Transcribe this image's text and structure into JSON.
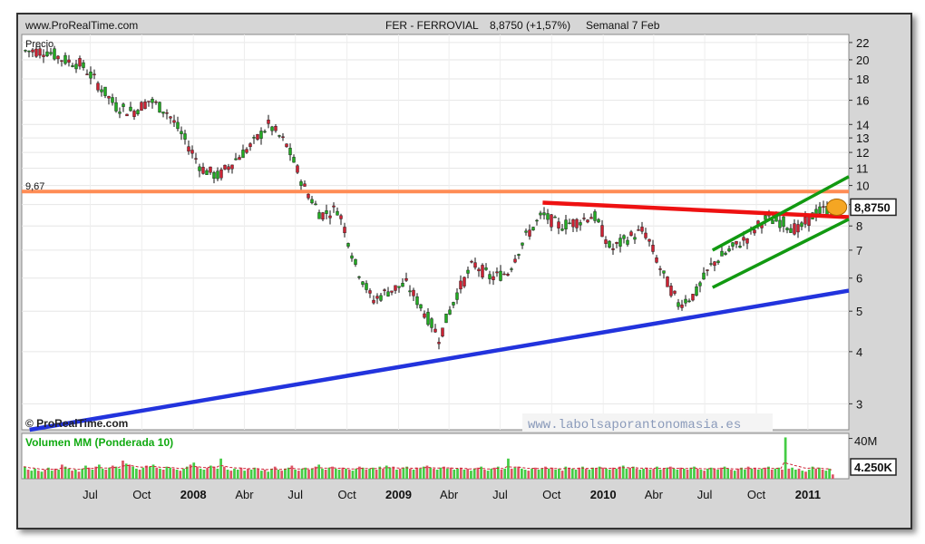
{
  "header": {
    "site": "www.ProRealTime.com",
    "instrument": "FER - FERROVIAL",
    "quote": "8,8750 (+1,57%)",
    "period": "Semanal  7 Feb"
  },
  "price_panel": {
    "label": "Precio",
    "level_label": "9,67",
    "last_price_label": "8,8750"
  },
  "volume_panel": {
    "label": "Volumen MM (Ponderada 10)",
    "axis_label": "40M",
    "last_volume_label": "4.250K"
  },
  "watermark_left": "© ProRealTime.com",
  "watermark_right": "www.labolsaporantonomasia.es",
  "colors": {
    "up": "#22aa22",
    "down": "#cc2233",
    "resistance_level": "#ff8c55",
    "support_trend": "#2233dd",
    "resistance_trend": "#ee1111",
    "channel": "#119911",
    "volume_up": "#44cc44",
    "volume_down": "#dd5566",
    "badge": "#f5a623"
  },
  "chart_data": [
    {
      "type": "line",
      "title": "FER - FERROVIAL",
      "ylabel": "Precio",
      "y_scale": "log",
      "ylim": [
        2.6,
        23
      ],
      "y_ticks": [
        3,
        4,
        5,
        6,
        7,
        8,
        9,
        10,
        11,
        12,
        13,
        14,
        16,
        18,
        20,
        22
      ],
      "x_ticks": [
        "Jul",
        "Oct",
        "2008",
        "Abr",
        "Jul",
        "Oct",
        "2009",
        "Abr",
        "Jul",
        "Oct",
        "2010",
        "Abr",
        "Jul",
        "Oct",
        "2011"
      ],
      "grid": true,
      "series": [
        {
          "name": "Precio",
          "x": [
            "2007-04",
            "2007-05",
            "2007-06",
            "2007-07",
            "2007-08",
            "2007-09",
            "2007-10",
            "2007-11",
            "2007-12",
            "2008-01",
            "2008-02",
            "2008-03",
            "2008-04",
            "2008-05",
            "2008-06",
            "2008-07",
            "2008-08",
            "2008-09",
            "2008-10",
            "2008-11",
            "2008-12",
            "2009-01",
            "2009-02",
            "2009-03",
            "2009-04",
            "2009-05",
            "2009-06",
            "2009-07",
            "2009-08",
            "2009-09",
            "2009-10",
            "2009-11",
            "2009-12",
            "2010-01",
            "2010-02",
            "2010-03",
            "2010-04",
            "2010-05",
            "2010-06",
            "2010-07",
            "2010-08",
            "2010-09",
            "2010-10",
            "2010-11",
            "2010-12",
            "2011-01",
            "2011-02"
          ],
          "values": [
            21,
            20,
            19.5,
            17.5,
            15.5,
            15,
            16,
            15,
            13,
            11,
            10.5,
            11.5,
            12.5,
            14,
            12.5,
            10,
            8.5,
            8.8,
            6.5,
            5.3,
            5.6,
            5.8,
            5,
            4.3,
            5.5,
            6.5,
            6,
            6.2,
            7.5,
            8.5,
            8,
            8.2,
            8.5,
            7,
            7.5,
            7.8,
            6.2,
            5.2,
            5.5,
            6.5,
            7,
            7.5,
            8.3,
            8.2,
            7.8,
            8.6,
            8.875
          ]
        }
      ],
      "annotations": [
        {
          "label": "9,67",
          "kind": "horizontal resistance",
          "value": 9.67
        },
        {
          "kind": "support trendline",
          "from": [
            "2007-03",
            2.6
          ],
          "to": [
            "2011-03",
            5.6
          ]
        },
        {
          "kind": "resistance trendline",
          "from": [
            "2009-09",
            9.1
          ],
          "to": [
            "2011-03",
            8.4
          ]
        },
        {
          "kind": "channel upper",
          "from": [
            "2010-07",
            7.0
          ],
          "to": [
            "2011-03",
            10.5
          ]
        },
        {
          "kind": "channel lower",
          "from": [
            "2010-07",
            5.7
          ],
          "to": [
            "2011-03",
            8.3
          ]
        },
        {
          "label": "8,8750",
          "kind": "last price",
          "value": 8.875
        }
      ]
    },
    {
      "type": "bar",
      "title": "Volumen MM (Ponderada 10)",
      "ylim": [
        0,
        45
      ],
      "y_ticks_labels": [
        "40M"
      ],
      "unit": "M",
      "series": [
        {
          "name": "Volumen",
          "values": [
            12,
            9,
            8,
            10,
            8,
            7,
            9,
            11,
            8,
            10,
            9,
            14,
            12,
            10,
            8,
            9,
            7,
            10,
            13,
            11,
            9,
            12,
            14,
            10,
            9,
            11,
            13,
            12,
            10,
            18,
            15,
            14,
            12,
            10,
            9,
            11,
            13,
            12,
            14,
            11,
            10,
            9,
            12,
            11,
            10,
            9,
            8,
            10,
            12,
            14,
            16,
            12,
            10,
            9,
            11,
            13,
            12,
            10,
            20,
            12,
            9,
            8,
            10,
            9,
            11,
            8,
            10,
            9,
            11,
            10,
            8,
            9,
            7,
            10,
            12,
            9,
            8,
            10,
            11,
            13,
            9,
            8,
            10,
            11,
            9,
            10,
            12,
            14,
            10,
            9,
            11,
            12,
            10,
            9,
            11,
            10,
            9,
            8,
            10,
            12,
            11,
            9,
            10,
            11,
            9,
            12,
            10,
            13,
            11,
            12,
            9,
            10,
            11,
            12,
            10,
            9,
            11,
            10,
            12,
            13,
            11,
            10,
            9,
            11,
            12,
            10,
            11,
            9,
            10,
            11,
            9,
            10,
            8,
            10,
            11,
            12,
            9,
            8,
            10,
            11,
            12,
            9,
            10,
            20,
            10,
            11,
            12,
            10,
            9,
            8,
            10,
            11,
            9,
            10,
            12,
            10,
            11,
            9,
            10,
            8,
            12,
            11,
            10,
            9,
            11,
            12,
            10,
            9,
            11,
            10,
            12,
            11,
            10,
            9,
            11,
            10,
            12,
            13,
            10,
            11,
            12,
            10,
            9,
            10,
            11,
            9,
            10,
            12,
            9,
            10,
            11,
            12,
            10,
            9,
            11,
            10,
            9,
            11,
            12,
            10,
            9,
            8,
            10,
            11,
            10,
            9,
            11,
            12,
            10,
            9,
            8,
            10,
            11,
            9,
            12,
            10,
            11,
            9,
            10,
            11,
            12,
            9,
            10,
            11,
            9,
            41,
            10,
            11,
            9,
            10,
            8,
            7,
            9,
            12,
            10,
            11,
            9,
            8,
            10,
            4.25
          ]
        }
      ],
      "last_value_label": "4.250K"
    }
  ]
}
